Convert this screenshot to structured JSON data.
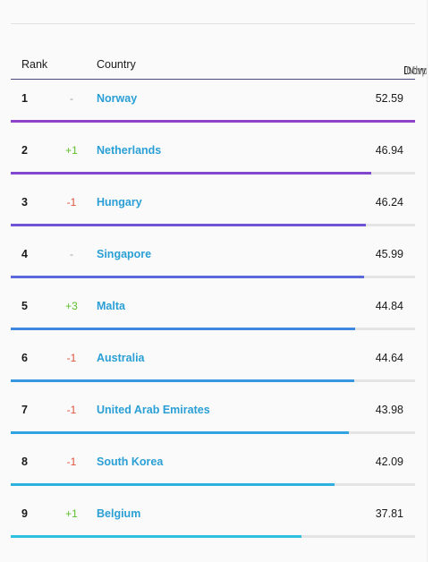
{
  "table": {
    "headers": {
      "rank": "Rank",
      "country": "Country",
      "download": "Download",
      "unit": "Mbps"
    },
    "max_value": 52.59,
    "rows": [
      {
        "rank": "1",
        "change": "-",
        "change_color": "#9a9a9a",
        "country": "Norway",
        "speed": "52.59",
        "value": 52.59,
        "bar_color": "#8e44c8"
      },
      {
        "rank": "2",
        "change": "+1",
        "change_color": "#5cbf2a",
        "country": "Netherlands",
        "speed": "46.94",
        "value": 46.94,
        "bar_color": "#8148cf"
      },
      {
        "rank": "3",
        "change": "-1",
        "change_color": "#e0533d",
        "country": "Hungary",
        "speed": "46.24",
        "value": 46.24,
        "bar_color": "#6f55d6"
      },
      {
        "rank": "4",
        "change": "-",
        "change_color": "#9a9a9a",
        "country": "Singapore",
        "speed": "45.99",
        "value": 45.99,
        "bar_color": "#5b6adb"
      },
      {
        "rank": "5",
        "change": "+3",
        "change_color": "#5cbf2a",
        "country": "Malta",
        "speed": "44.84",
        "value": 44.84,
        "bar_color": "#3f88df"
      },
      {
        "rank": "6",
        "change": "-1",
        "change_color": "#e0533d",
        "country": "Australia",
        "speed": "44.64",
        "value": 44.64,
        "bar_color": "#3696e0"
      },
      {
        "rank": "7",
        "change": "-1",
        "change_color": "#e0533d",
        "country": "United Arab Emirates",
        "speed": "43.98",
        "value": 43.98,
        "bar_color": "#30a3e0"
      },
      {
        "rank": "8",
        "change": "-1",
        "change_color": "#e0533d",
        "country": "South Korea",
        "speed": "42.09",
        "value": 42.09,
        "bar_color": "#2eb0df"
      },
      {
        "rank": "9",
        "change": "+1",
        "change_color": "#5cbf2a",
        "country": "Belgium",
        "speed": "37.81",
        "value": 37.81,
        "bar_color": "#2ec0df"
      }
    ]
  }
}
